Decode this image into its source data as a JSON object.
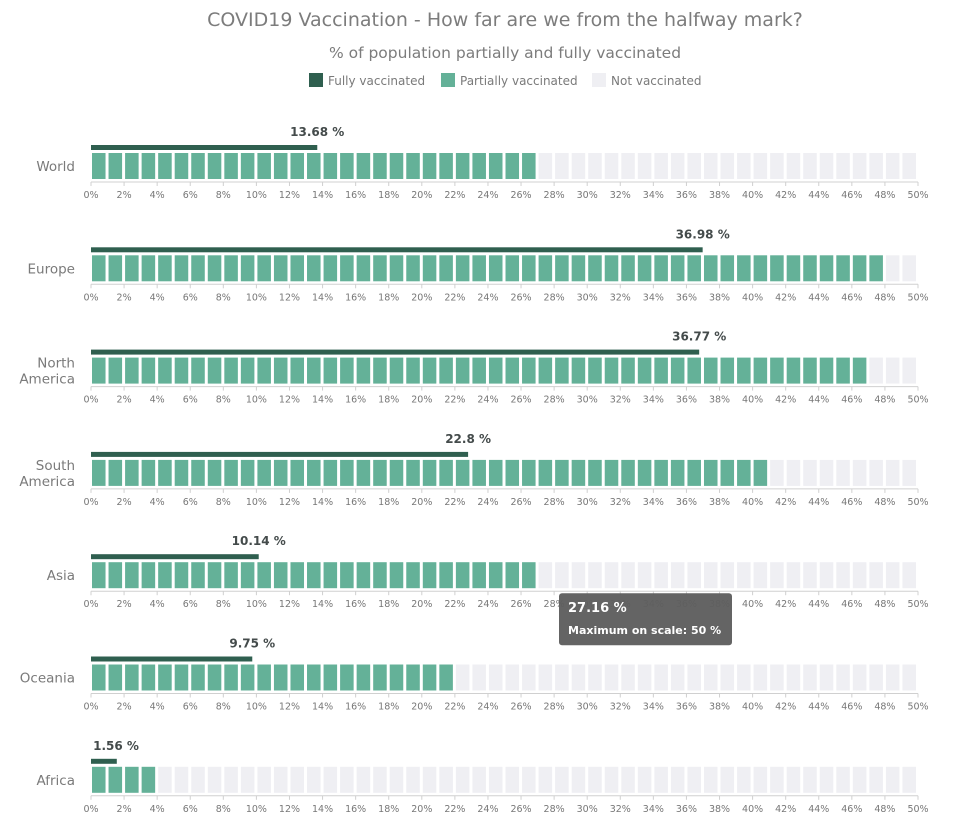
{
  "chart_data": {
    "type": "bar",
    "title": "COVID19 Vaccination - How far are we from the halfway mark?",
    "subtitle": "% of population partially and fully vaccinated",
    "legend": [
      {
        "label": "Fully vaccinated",
        "color": "#2f5f4f"
      },
      {
        "label": "Partially vaccinated",
        "color": "#64b198"
      },
      {
        "label": "Not vaccinated",
        "color": "#efeff3"
      }
    ],
    "categories": [
      {
        "label": [
          "World"
        ],
        "fully": 13.68,
        "fully_label": "13.68 %",
        "partial": 27
      },
      {
        "label": [
          "Europe"
        ],
        "fully": 36.98,
        "fully_label": "36.98 %",
        "partial": 48
      },
      {
        "label": [
          "North",
          "America"
        ],
        "fully": 36.77,
        "fully_label": "36.77 %",
        "partial": 47
      },
      {
        "label": [
          "South",
          "America"
        ],
        "fully": 22.8,
        "fully_label": "22.8 %",
        "partial": 41
      },
      {
        "label": [
          "Asia"
        ],
        "fully": 10.14,
        "fully_label": "10.14 %",
        "partial": 27.16
      },
      {
        "label": [
          "Oceania"
        ],
        "fully": 9.75,
        "fully_label": "9.75 %",
        "partial": 22
      },
      {
        "label": [
          "Africa"
        ],
        "fully": 1.56,
        "fully_label": "1.56 %",
        "partial": 4
      }
    ],
    "scale": {
      "min": 0,
      "max": 50,
      "step": 2,
      "tick_suffix": "%"
    },
    "colors": {
      "fully": "#2f5f4f",
      "partial": "#64b198",
      "empty": "#efeff3",
      "axis": "#d0d0d0",
      "tooltip_bg": "#5e5e5e"
    },
    "tooltip": {
      "value": "27.16 %",
      "note": "Maximum on scale: 50 %",
      "category_index": 4
    }
  }
}
